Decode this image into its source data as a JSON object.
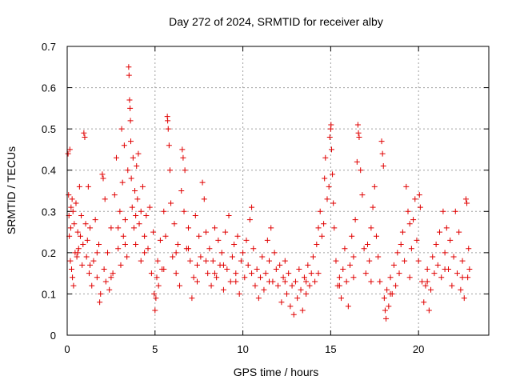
{
  "chart_data": {
    "type": "scatter",
    "title": "Day 272 of 2024, SRMTID for receiver alby",
    "xlabel": "GPS time / hours",
    "ylabel": "SRMTID / TECUs",
    "xlim": [
      0,
      24
    ],
    "ylim": [
      0,
      0.7
    ],
    "xticks": [
      0,
      5,
      10,
      15,
      20
    ],
    "yticks": [
      0,
      0.1,
      0.2,
      0.3,
      0.4,
      0.5,
      0.6,
      0.7
    ],
    "xtick_labels": [
      "0",
      "5",
      "10",
      "15",
      "20"
    ],
    "ytick_labels": [
      "0",
      "0.1",
      "0.2",
      "0.3",
      "0.4",
      "0.5",
      "0.6",
      "0.7"
    ],
    "grid": true,
    "marker": "+",
    "color": "#e00000",
    "series": [
      {
        "name": "SRMTID",
        "points": [
          [
            0.05,
            0.44
          ],
          [
            0.08,
            0.34
          ],
          [
            0.1,
            0.29
          ],
          [
            0.12,
            0.24
          ],
          [
            0.15,
            0.45
          ],
          [
            0.18,
            0.18
          ],
          [
            0.2,
            0.26
          ],
          [
            0.22,
            0.31
          ],
          [
            0.25,
            0.16
          ],
          [
            0.28,
            0.33
          ],
          [
            0.3,
            0.14
          ],
          [
            0.33,
            0.3
          ],
          [
            0.36,
            0.12
          ],
          [
            0.4,
            0.27
          ],
          [
            0.45,
            0.2
          ],
          [
            0.5,
            0.32
          ],
          [
            0.55,
            0.19
          ],
          [
            0.6,
            0.25
          ],
          [
            0.65,
            0.21
          ],
          [
            0.7,
            0.36
          ],
          [
            0.75,
            0.24
          ],
          [
            0.8,
            0.29
          ],
          [
            0.85,
            0.17
          ],
          [
            0.9,
            0.22
          ],
          [
            0.95,
            0.49
          ],
          [
            1.0,
            0.48
          ],
          [
            1.05,
            0.27
          ],
          [
            1.1,
            0.19
          ],
          [
            1.15,
            0.23
          ],
          [
            1.2,
            0.36
          ],
          [
            1.25,
            0.15
          ],
          [
            1.3,
            0.26
          ],
          [
            1.4,
            0.12
          ],
          [
            1.5,
            0.18
          ],
          [
            1.6,
            0.28
          ],
          [
            1.7,
            0.14
          ],
          [
            1.8,
            0.22
          ],
          [
            1.85,
            0.08
          ],
          [
            1.9,
            0.1
          ],
          [
            2.0,
            0.39
          ],
          [
            2.05,
            0.38
          ],
          [
            2.1,
            0.16
          ],
          [
            2.15,
            0.33
          ],
          [
            2.2,
            0.13
          ],
          [
            2.3,
            0.2
          ],
          [
            2.4,
            0.11
          ],
          [
            2.5,
            0.26
          ],
          [
            2.6,
            0.15
          ],
          [
            2.7,
            0.34
          ],
          [
            2.8,
            0.43
          ],
          [
            2.9,
            0.21
          ],
          [
            3.0,
            0.3
          ],
          [
            3.05,
            0.17
          ],
          [
            3.1,
            0.5
          ],
          [
            3.15,
            0.37
          ],
          [
            3.2,
            0.24
          ],
          [
            3.25,
            0.46
          ],
          [
            3.3,
            0.28
          ],
          [
            3.4,
            0.19
          ],
          [
            3.45,
            0.4
          ],
          [
            3.5,
            0.65
          ],
          [
            3.52,
            0.63
          ],
          [
            3.55,
            0.57
          ],
          [
            3.58,
            0.55
          ],
          [
            3.6,
            0.52
          ],
          [
            3.62,
            0.47
          ],
          [
            3.65,
            0.38
          ],
          [
            3.7,
            0.31
          ],
          [
            3.75,
            0.43
          ],
          [
            3.8,
            0.26
          ],
          [
            3.85,
            0.35
          ],
          [
            3.9,
            0.22
          ],
          [
            3.95,
            0.41
          ],
          [
            4.0,
            0.33
          ],
          [
            4.05,
            0.44
          ],
          [
            4.1,
            0.27
          ],
          [
            4.2,
            0.18
          ],
          [
            4.3,
            0.36
          ],
          [
            4.4,
            0.24
          ],
          [
            4.5,
            0.29
          ],
          [
            4.6,
            0.21
          ],
          [
            4.7,
            0.31
          ],
          [
            4.8,
            0.15
          ],
          [
            4.9,
            0.25
          ],
          [
            4.95,
            0.1
          ],
          [
            5.0,
            0.06
          ],
          [
            5.05,
            0.09
          ],
          [
            5.1,
            0.14
          ],
          [
            5.15,
            0.18
          ],
          [
            5.2,
            0.12
          ],
          [
            5.3,
            0.23
          ],
          [
            5.4,
            0.16
          ],
          [
            5.5,
            0.3
          ],
          [
            5.6,
            0.24
          ],
          [
            5.7,
            0.53
          ],
          [
            5.72,
            0.52
          ],
          [
            5.75,
            0.5
          ],
          [
            5.8,
            0.46
          ],
          [
            5.85,
            0.4
          ],
          [
            5.9,
            0.32
          ],
          [
            6.0,
            0.19
          ],
          [
            6.1,
            0.27
          ],
          [
            6.2,
            0.15
          ],
          [
            6.3,
            0.22
          ],
          [
            6.4,
            0.12
          ],
          [
            6.5,
            0.35
          ],
          [
            6.55,
            0.45
          ],
          [
            6.6,
            0.43
          ],
          [
            6.65,
            0.3
          ],
          [
            6.7,
            0.4
          ],
          [
            6.8,
            0.21
          ],
          [
            6.9,
            0.26
          ],
          [
            7.0,
            0.18
          ],
          [
            7.1,
            0.09
          ],
          [
            7.2,
            0.14
          ],
          [
            7.3,
            0.29
          ],
          [
            7.4,
            0.17
          ],
          [
            7.5,
            0.24
          ],
          [
            7.6,
            0.19
          ],
          [
            7.7,
            0.37
          ],
          [
            7.8,
            0.33
          ],
          [
            7.9,
            0.25
          ],
          [
            8.0,
            0.15
          ],
          [
            8.1,
            0.21
          ],
          [
            8.2,
            0.12
          ],
          [
            8.3,
            0.18
          ],
          [
            8.4,
            0.26
          ],
          [
            8.5,
            0.14
          ],
          [
            8.6,
            0.23
          ],
          [
            8.7,
            0.17
          ],
          [
            8.8,
            0.2
          ],
          [
            8.9,
            0.11
          ],
          [
            9.0,
            0.25
          ],
          [
            9.1,
            0.16
          ],
          [
            9.2,
            0.29
          ],
          [
            9.3,
            0.13
          ],
          [
            9.4,
            0.19
          ],
          [
            9.5,
            0.22
          ],
          [
            9.6,
            0.15
          ],
          [
            9.7,
            0.24
          ],
          [
            9.8,
            0.1
          ],
          [
            9.9,
            0.18
          ],
          [
            10.0,
            0.2
          ],
          [
            10.1,
            0.14
          ],
          [
            10.2,
            0.23
          ],
          [
            10.3,
            0.17
          ],
          [
            10.4,
            0.28
          ],
          [
            10.5,
            0.31
          ],
          [
            10.6,
            0.21
          ],
          [
            10.7,
            0.12
          ],
          [
            10.8,
            0.16
          ],
          [
            10.9,
            0.09
          ],
          [
            11.0,
            0.14
          ],
          [
            11.1,
            0.19
          ],
          [
            11.2,
            0.11
          ],
          [
            11.3,
            0.15
          ],
          [
            11.4,
            0.23
          ],
          [
            11.5,
            0.18
          ],
          [
            11.6,
            0.26
          ],
          [
            11.7,
            0.13
          ],
          [
            11.8,
            0.2
          ],
          [
            11.9,
            0.16
          ],
          [
            12.0,
            0.12
          ],
          [
            12.1,
            0.17
          ],
          [
            12.2,
            0.08
          ],
          [
            12.3,
            0.14
          ],
          [
            12.4,
            0.18
          ],
          [
            12.5,
            0.1
          ],
          [
            12.6,
            0.15
          ],
          [
            12.7,
            0.07
          ],
          [
            12.8,
            0.12
          ],
          [
            12.9,
            0.05
          ],
          [
            13.0,
            0.13
          ],
          [
            13.1,
            0.09
          ],
          [
            13.2,
            0.16
          ],
          [
            13.3,
            0.11
          ],
          [
            13.4,
            0.06
          ],
          [
            13.5,
            0.14
          ],
          [
            13.6,
            0.1
          ],
          [
            13.7,
            0.17
          ],
          [
            13.8,
            0.12
          ],
          [
            13.9,
            0.15
          ],
          [
            14.0,
            0.19
          ],
          [
            14.1,
            0.13
          ],
          [
            14.2,
            0.22
          ],
          [
            14.3,
            0.26
          ],
          [
            14.4,
            0.3
          ],
          [
            14.5,
            0.24
          ],
          [
            14.6,
            0.27
          ],
          [
            14.65,
            0.38
          ],
          [
            14.7,
            0.43
          ],
          [
            14.8,
            0.33
          ],
          [
            14.9,
            0.36
          ],
          [
            14.95,
            0.48
          ],
          [
            15.0,
            0.5
          ],
          [
            15.02,
            0.51
          ],
          [
            15.05,
            0.45
          ],
          [
            15.1,
            0.39
          ],
          [
            15.15,
            0.32
          ],
          [
            15.2,
            0.26
          ],
          [
            15.3,
            0.18
          ],
          [
            15.4,
            0.12
          ],
          [
            15.5,
            0.14
          ],
          [
            15.6,
            0.09
          ],
          [
            15.7,
            0.16
          ],
          [
            15.8,
            0.21
          ],
          [
            15.9,
            0.13
          ],
          [
            16.0,
            0.07
          ],
          [
            16.1,
            0.17
          ],
          [
            16.2,
            0.24
          ],
          [
            16.3,
            0.19
          ],
          [
            16.4,
            0.28
          ],
          [
            16.5,
            0.42
          ],
          [
            16.55,
            0.51
          ],
          [
            16.58,
            0.49
          ],
          [
            16.62,
            0.48
          ],
          [
            16.7,
            0.4
          ],
          [
            16.8,
            0.34
          ],
          [
            16.9,
            0.21
          ],
          [
            17.0,
            0.15
          ],
          [
            17.1,
            0.22
          ],
          [
            17.2,
            0.18
          ],
          [
            17.3,
            0.26
          ],
          [
            17.4,
            0.31
          ],
          [
            17.5,
            0.36
          ],
          [
            17.6,
            0.24
          ],
          [
            17.7,
            0.19
          ],
          [
            17.8,
            0.13
          ],
          [
            17.9,
            0.47
          ],
          [
            17.95,
            0.44
          ],
          [
            18.0,
            0.41
          ],
          [
            18.05,
            0.09
          ],
          [
            18.1,
            0.06
          ],
          [
            18.15,
            0.04
          ],
          [
            18.2,
            0.11
          ],
          [
            18.3,
            0.07
          ],
          [
            18.4,
            0.14
          ],
          [
            18.5,
            0.1
          ],
          [
            18.6,
            0.17
          ],
          [
            18.7,
            0.12
          ],
          [
            18.8,
            0.2
          ],
          [
            18.9,
            0.15
          ],
          [
            19.0,
            0.22
          ],
          [
            19.1,
            0.25
          ],
          [
            19.2,
            0.18
          ],
          [
            19.3,
            0.36
          ],
          [
            19.4,
            0.3
          ],
          [
            19.5,
            0.27
          ],
          [
            19.6,
            0.21
          ],
          [
            19.7,
            0.28
          ],
          [
            19.8,
            0.33
          ],
          [
            19.9,
            0.23
          ],
          [
            20.0,
            0.18
          ],
          [
            20.05,
            0.34
          ],
          [
            20.1,
            0.31
          ],
          [
            20.2,
            0.13
          ],
          [
            20.3,
            0.08
          ],
          [
            20.4,
            0.12
          ],
          [
            20.5,
            0.16
          ],
          [
            20.6,
            0.06
          ],
          [
            20.7,
            0.11
          ],
          [
            20.8,
            0.19
          ],
          [
            20.9,
            0.15
          ],
          [
            21.0,
            0.22
          ],
          [
            21.1,
            0.17
          ],
          [
            21.2,
            0.25
          ],
          [
            21.3,
            0.14
          ],
          [
            21.4,
            0.3
          ],
          [
            21.5,
            0.2
          ],
          [
            21.6,
            0.26
          ],
          [
            21.7,
            0.16
          ],
          [
            21.8,
            0.23
          ],
          [
            21.9,
            0.12
          ],
          [
            22.0,
            0.19
          ],
          [
            22.1,
            0.3
          ],
          [
            22.2,
            0.15
          ],
          [
            22.3,
            0.25
          ],
          [
            22.4,
            0.11
          ],
          [
            22.5,
            0.18
          ],
          [
            22.6,
            0.09
          ],
          [
            22.7,
            0.33
          ],
          [
            22.75,
            0.32
          ],
          [
            22.8,
            0.14
          ],
          [
            22.85,
            0.21
          ],
          [
            22.9,
            0.16
          ],
          [
            0.6,
            0.2
          ],
          [
            1.3,
            0.17
          ],
          [
            2.5,
            0.14
          ],
          [
            3.3,
            0.22
          ],
          [
            4.4,
            0.2
          ],
          [
            5.5,
            0.16
          ],
          [
            6.2,
            0.2
          ],
          [
            7.4,
            0.13
          ],
          [
            8.4,
            0.15
          ],
          [
            9.6,
            0.13
          ],
          [
            10.5,
            0.15
          ],
          [
            11.5,
            0.13
          ],
          [
            12.4,
            0.13
          ],
          [
            13.6,
            0.13
          ],
          [
            14.3,
            0.15
          ],
          [
            15.5,
            0.12
          ],
          [
            16.3,
            0.14
          ],
          [
            17.3,
            0.13
          ],
          [
            18.4,
            0.1
          ],
          [
            19.5,
            0.14
          ],
          [
            20.5,
            0.13
          ],
          [
            21.5,
            0.16
          ],
          [
            22.5,
            0.14
          ],
          [
            3.9,
            0.29
          ],
          [
            4.2,
            0.3
          ],
          [
            2.9,
            0.26
          ],
          [
            1.7,
            0.2
          ],
          [
            6.9,
            0.21
          ],
          [
            7.9,
            0.18
          ],
          [
            8.9,
            0.17
          ]
        ]
      }
    ]
  }
}
